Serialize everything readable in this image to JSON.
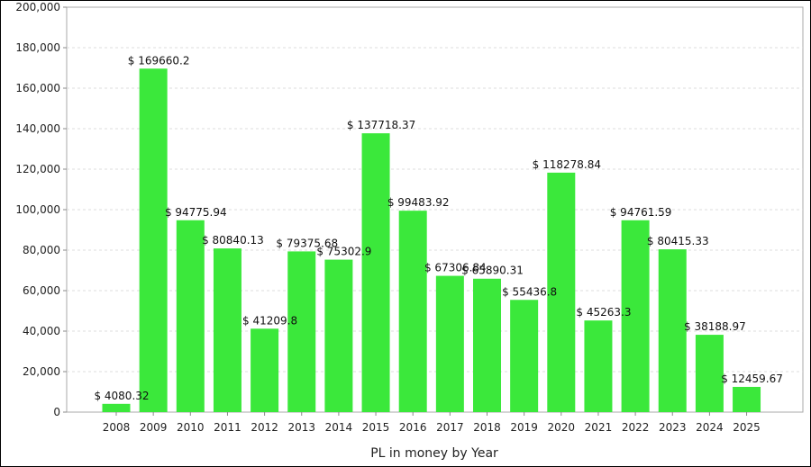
{
  "chart_data": {
    "type": "bar",
    "title": "",
    "xlabel": "PL in money by Year",
    "ylabel": "",
    "ylim": [
      0,
      200000
    ],
    "yticks": [
      0,
      20000,
      40000,
      60000,
      80000,
      100000,
      120000,
      140000,
      160000,
      180000,
      200000
    ],
    "ytick_labels": [
      "0",
      "20,000",
      "40,000",
      "60,000",
      "80,000",
      "100,000",
      "120,000",
      "140,000",
      "160,000",
      "180,000",
      "200,000"
    ],
    "grid": true,
    "legend": "none",
    "bar_color": "#3be83b",
    "categories": [
      "2008",
      "2009",
      "2010",
      "2011",
      "2012",
      "2013",
      "2014",
      "2015",
      "2016",
      "2017",
      "2018",
      "2019",
      "2020",
      "2021",
      "2022",
      "2023",
      "2024",
      "2025"
    ],
    "values": [
      4080.32,
      169660.2,
      94775.94,
      80840.13,
      41209.8,
      79375.68,
      75302.9,
      137718.37,
      99483.92,
      67306.84,
      65890.31,
      55436.8,
      118278.84,
      45263.3,
      94761.59,
      80415.33,
      38188.97,
      12459.67
    ],
    "data_labels": [
      "$ 4080.32",
      "$ 169660.2",
      "$ 94775.94",
      "$ 80840.13",
      "$ 41209.8",
      "$ 79375.68",
      "$ 75302.9",
      "$ 137718.37",
      "$ 99483.92",
      "$ 67306.84",
      "$ 65890.31",
      "$ 55436.8",
      "$ 118278.84",
      "$ 45263.3",
      "$ 94761.59",
      "$ 80415.33",
      "$ 38188.97",
      "$ 12459.67"
    ]
  }
}
